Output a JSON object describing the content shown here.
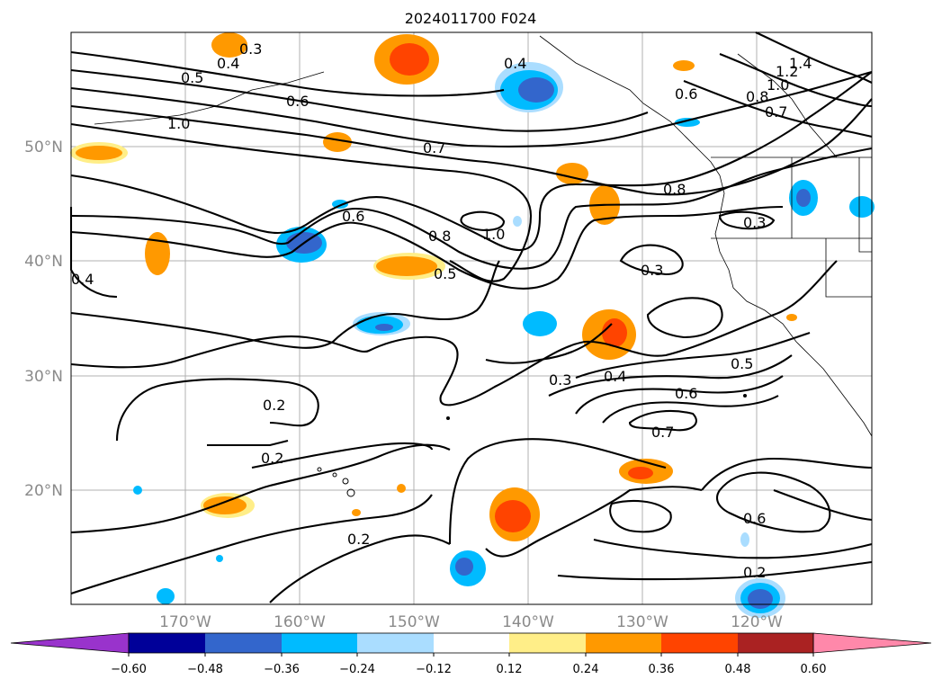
{
  "title": "2024011700 F024",
  "lon_labels": [
    "170°W",
    "160°W",
    "150°W",
    "140°W",
    "130°W",
    "120°W"
  ],
  "lat_labels": [
    "50°N",
    "40°N",
    "30°N",
    "20°N"
  ],
  "colorbar": {
    "tick_labels": [
      "−0.60",
      "−0.48",
      "−0.36",
      "−0.24",
      "−0.12",
      "0.12",
      "0.24",
      "0.36",
      "0.48",
      "0.60"
    ],
    "colors": [
      "#9933cc",
      "#000099",
      "#3366cc",
      "#00bbff",
      "#aaddff",
      "#ffffff",
      "#ffee88",
      "#ff9900",
      "#ff4400",
      "#aa2222",
      "#ff88aa"
    ]
  },
  "contour_labels": [
    "0.3",
    "0.4",
    "0.5",
    "0.6",
    "1.0",
    "0.7",
    "0.4",
    "0.6",
    "1.2",
    "1.4",
    "1.0",
    "0.8",
    "0.7",
    "0.6",
    "0.8",
    "0.3",
    "1.0",
    "0.8",
    "0.5",
    "0.3",
    "0.4",
    "0.5",
    "0.3",
    "0.4",
    "0.6",
    "0.7",
    "0.2",
    "0.2",
    "0.2",
    "0.6",
    "0.2"
  ]
}
